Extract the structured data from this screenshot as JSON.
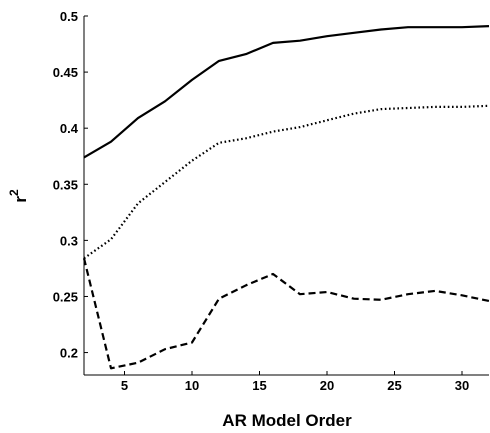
{
  "chart_data": {
    "type": "line",
    "title": "",
    "xlabel": "AR Model Order",
    "ylabel": "r",
    "ylabel_superscript": "2",
    "xlim": [
      2,
      32
    ],
    "ylim": [
      0.18,
      0.5
    ],
    "xticks": [
      5,
      10,
      15,
      20,
      25,
      30
    ],
    "yticks": [
      0.2,
      0.25,
      0.3,
      0.35,
      0.4,
      0.45,
      0.5
    ],
    "ytick_labels": [
      "0.2",
      "0.25",
      "0.3",
      "0.35",
      "0.4",
      "0.45",
      "0.5"
    ],
    "grid": false,
    "legend": "none",
    "x": [
      2,
      4,
      6,
      8,
      10,
      12,
      14,
      16,
      18,
      20,
      22,
      24,
      26,
      28,
      30,
      32
    ],
    "series": [
      {
        "style": "solid",
        "color": "#000000",
        "values": [
          0.374,
          0.388,
          0.409,
          0.424,
          0.443,
          0.46,
          0.466,
          0.476,
          0.478,
          0.482,
          0.485,
          0.488,
          0.49,
          0.49,
          0.49,
          0.491
        ]
      },
      {
        "style": "dotted",
        "color": "#000000",
        "values": [
          0.284,
          0.301,
          0.333,
          0.352,
          0.371,
          0.387,
          0.391,
          0.397,
          0.401,
          0.407,
          0.413,
          0.417,
          0.418,
          0.419,
          0.419,
          0.42
        ]
      },
      {
        "style": "dashed",
        "color": "#000000",
        "values": [
          0.284,
          0.186,
          0.191,
          0.203,
          0.209,
          0.248,
          0.26,
          0.27,
          0.252,
          0.254,
          0.248,
          0.247,
          0.252,
          0.255,
          0.251,
          0.246
        ]
      }
    ]
  }
}
